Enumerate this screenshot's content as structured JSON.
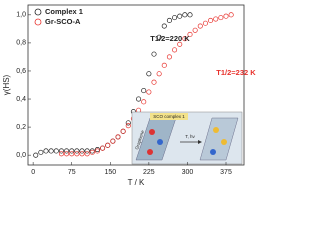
{
  "chart_data": {
    "type": "scatter",
    "x_label": "T / K",
    "y_label": "γ(HS)",
    "xlim": [
      -10,
      410
    ],
    "ylim": [
      -0.07,
      1.07
    ],
    "xticks": [
      0,
      75,
      150,
      225,
      300,
      375
    ],
    "yticks": [
      {
        "value": 0,
        "label": "0,0"
      },
      {
        "value": 0.2,
        "label": "0,2"
      },
      {
        "value": 0.4,
        "label": "0,4"
      },
      {
        "value": 0.6,
        "label": "0,6"
      },
      {
        "value": 0.8,
        "label": "0,8"
      },
      {
        "value": 1.0,
        "label": "1,0"
      }
    ],
    "legend": "upper left",
    "series": [
      {
        "name": "Complex 1",
        "color": "#222222",
        "x": [
          5,
          15,
          25,
          35,
          45,
          55,
          65,
          75,
          85,
          95,
          105,
          115,
          125,
          135,
          145,
          155,
          165,
          175,
          185,
          195,
          205,
          215,
          225,
          235,
          245,
          255,
          265,
          275,
          285,
          295,
          305
        ],
        "values": [
          0.0,
          0.02,
          0.03,
          0.03,
          0.03,
          0.03,
          0.03,
          0.03,
          0.03,
          0.03,
          0.03,
          0.03,
          0.04,
          0.05,
          0.07,
          0.1,
          0.13,
          0.17,
          0.23,
          0.31,
          0.4,
          0.46,
          0.58,
          0.72,
          0.84,
          0.92,
          0.96,
          0.98,
          0.99,
          1.0,
          1.0
        ]
      },
      {
        "name": "Gr-SCO-A",
        "color": "#e8322d",
        "x": [
          55,
          65,
          75,
          85,
          95,
          105,
          115,
          125,
          135,
          145,
          155,
          165,
          175,
          185,
          195,
          205,
          215,
          225,
          235,
          245,
          255,
          265,
          275,
          285,
          295,
          305,
          315,
          325,
          335,
          345,
          355,
          365,
          375,
          385
        ],
        "values": [
          0.01,
          0.01,
          0.01,
          0.01,
          0.01,
          0.01,
          0.02,
          0.03,
          0.05,
          0.07,
          0.1,
          0.13,
          0.17,
          0.21,
          0.26,
          0.32,
          0.38,
          0.45,
          0.52,
          0.58,
          0.64,
          0.7,
          0.75,
          0.79,
          0.83,
          0.86,
          0.89,
          0.92,
          0.94,
          0.96,
          0.97,
          0.98,
          0.99,
          1.0
        ]
      }
    ],
    "annotations": [
      {
        "text": "T1/2=220 K",
        "color": "#222222"
      },
      {
        "text": "T1/2=232 K",
        "color": "#e8322d"
      }
    ],
    "inset_labels": [
      "SCO complex 1",
      "Graphene",
      "T, hν"
    ]
  }
}
